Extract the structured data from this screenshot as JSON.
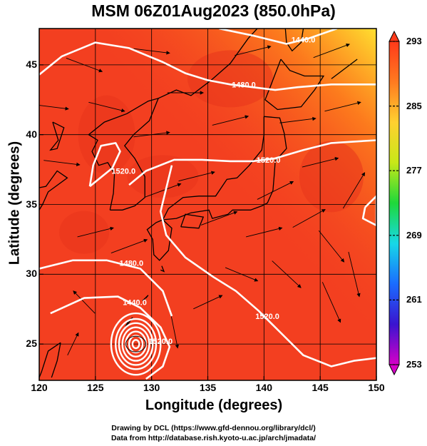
{
  "title": "MSM 06Z01Aug2023 (850.0hPa)",
  "xlabel": "Longitude (degrees)",
  "ylabel": "Latitude  (degrees)",
  "credit_lines": [
    "Drawing by DCL (https://www.gfd-dennou.org/library/dcl/)",
    "Data from http://database.rish.kyoto-u.ac.jp/arch/jmadata/"
  ],
  "chart_data": {
    "type": "heatmap",
    "title": "MSM 06Z01Aug2023 (850.0hPa)",
    "xlabel": "Longitude (degrees)",
    "ylabel": "Latitude  (degrees)",
    "xlim": [
      120,
      150
    ],
    "ylim": [
      22.4,
      47.6
    ],
    "x_ticks": [
      120,
      125,
      130,
      135,
      140,
      145,
      150
    ],
    "y_ticks": [
      25,
      30,
      35,
      40,
      45
    ],
    "grid": true,
    "colorbar": {
      "ticks": [
        293,
        285,
        277,
        269,
        261,
        253
      ],
      "min": 253,
      "max": 293,
      "colors": [
        "#d600c8",
        "#3a14d0",
        "#1a6cff",
        "#17d8e8",
        "#1ed83a",
        "#c8e818",
        "#ffd030",
        "#ff7a20",
        "#ff3a1a"
      ]
    },
    "field_color": "#f33f20",
    "contour_labels": [
      {
        "text": "1440.0",
        "lon": 143.5,
        "lat": 46.8
      },
      {
        "text": "1480.0",
        "lon": 138.2,
        "lat": 43.6
      },
      {
        "text": "1520.0",
        "lon": 140.4,
        "lat": 38.2
      },
      {
        "text": "1520.0",
        "lon": 127.5,
        "lat": 37.4
      },
      {
        "text": "1480.0",
        "lon": 128.2,
        "lat": 30.8
      },
      {
        "text": "1440.0",
        "lon": 128.5,
        "lat": 28.0
      },
      {
        "text": "1520.0",
        "lon": 140.3,
        "lat": 27.0
      },
      {
        "text": "1520.0",
        "lon": 130.8,
        "lat": 25.2
      }
    ],
    "contour_lines": [
      [
        [
          120,
          44.3
        ],
        [
          122,
          45.6
        ],
        [
          125,
          46.6
        ],
        [
          128,
          46.2
        ],
        [
          131,
          45.2
        ],
        [
          133,
          44.4
        ],
        [
          135,
          43.9
        ],
        [
          137,
          43.6
        ],
        [
          139,
          43.4
        ],
        [
          141,
          43.2
        ],
        [
          143,
          43.4
        ],
        [
          146,
          43.6
        ],
        [
          150,
          43.6
        ]
      ],
      [
        [
          136,
          47.6
        ],
        [
          139,
          47.1
        ],
        [
          142,
          46.5
        ],
        [
          144,
          46.9
        ],
        [
          146.5,
          47.6
        ]
      ],
      [
        [
          124.5,
          36.3
        ],
        [
          126.5,
          37.6
        ],
        [
          127.2,
          38.8
        ],
        [
          126.8,
          39.4
        ],
        [
          125.5,
          39.2
        ],
        [
          124.8,
          37.8
        ],
        [
          124.5,
          36.3
        ]
      ],
      [
        [
          128,
          36.4
        ],
        [
          129.5,
          37.4
        ],
        [
          132,
          38.2
        ],
        [
          134.5,
          38.2
        ],
        [
          137,
          38.1
        ],
        [
          139,
          38.1
        ],
        [
          141,
          38.3
        ],
        [
          143.5,
          38.9
        ],
        [
          146,
          39.4
        ],
        [
          150,
          39.6
        ]
      ],
      [
        [
          131.8,
          37.8
        ],
        [
          130.8,
          34.5
        ],
        [
          131.3,
          32.8
        ],
        [
          133,
          31.2
        ],
        [
          135.5,
          29.8
        ],
        [
          137.5,
          28.8
        ],
        [
          139.5,
          27.4
        ],
        [
          141.5,
          25.8
        ],
        [
          143.5,
          24.2
        ],
        [
          146,
          23.4
        ],
        [
          148,
          23.8
        ],
        [
          150,
          24.0
        ]
      ],
      [
        [
          120,
          30.4
        ],
        [
          123,
          31.0
        ],
        [
          126,
          31.0
        ],
        [
          129,
          30.4
        ],
        [
          131,
          28.8
        ],
        [
          131.8,
          27
        ]
      ],
      [
        [
          121,
          27.2
        ],
        [
          124,
          28.3
        ],
        [
          127,
          28.4
        ],
        [
          129,
          27.6
        ],
        [
          130.8,
          26.2
        ],
        [
          131.6,
          24.8
        ],
        [
          131,
          23.4
        ],
        [
          129.5,
          22.5
        ]
      ],
      [
        [
          149,
          34.8
        ],
        [
          150,
          35.6
        ],
        [
          150,
          33.5
        ],
        [
          148.8,
          34.0
        ],
        [
          149,
          34.8
        ]
      ]
    ],
    "vortex_center": {
      "lon": 128.6,
      "lat": 25.0
    },
    "vortex_rings": [
      0.3,
      0.6,
      0.9,
      1.2,
      1.5,
      1.8,
      2.2
    ],
    "coastlines": [
      [
        [
          141.5,
          45.4
        ],
        [
          142.3,
          44.6
        ],
        [
          143.6,
          44.2
        ],
        [
          145.3,
          44.2
        ],
        [
          144.5,
          43.2
        ],
        [
          143.3,
          42.0
        ],
        [
          141.2,
          41.8
        ],
        [
          140.1,
          42.5
        ],
        [
          140.5,
          43.3
        ],
        [
          141.5,
          45.4
        ]
      ],
      [
        [
          140.0,
          41.3
        ],
        [
          141.4,
          41.2
        ],
        [
          141.8,
          40.1
        ],
        [
          142.0,
          39.0
        ],
        [
          141.0,
          38.1
        ],
        [
          140.9,
          37.0
        ],
        [
          140.8,
          36.0
        ],
        [
          140.3,
          35.1
        ],
        [
          139.8,
          34.9
        ],
        [
          138.8,
          34.6
        ],
        [
          137.2,
          34.6
        ],
        [
          136.8,
          34.3
        ],
        [
          135.4,
          34.0
        ],
        [
          135.1,
          34.6
        ],
        [
          133.5,
          34.4
        ],
        [
          132.2,
          34.0
        ],
        [
          131.0,
          33.9
        ],
        [
          131.5,
          34.7
        ],
        [
          132.8,
          35.5
        ],
        [
          134.2,
          35.6
        ],
        [
          135.7,
          35.6
        ],
        [
          136.7,
          36.8
        ],
        [
          137.6,
          36.9
        ],
        [
          138.7,
          37.8
        ],
        [
          139.8,
          38.9
        ],
        [
          140.0,
          40.0
        ],
        [
          140.0,
          41.3
        ]
      ],
      [
        [
          131.0,
          33.9
        ],
        [
          131.8,
          33.3
        ],
        [
          131.5,
          31.7
        ],
        [
          130.7,
          31.0
        ],
        [
          130.2,
          31.4
        ],
        [
          130.1,
          32.5
        ],
        [
          129.6,
          33.2
        ],
        [
          130.4,
          33.7
        ],
        [
          131.0,
          33.9
        ]
      ],
      [
        [
          132.6,
          33.4
        ],
        [
          134.2,
          33.3
        ],
        [
          134.6,
          34.1
        ],
        [
          133.0,
          34.3
        ],
        [
          132.6,
          33.4
        ]
      ],
      [
        [
          126.3,
          34.6
        ],
        [
          126.6,
          35.8
        ],
        [
          126.7,
          37.2
        ],
        [
          126.1,
          38.0
        ],
        [
          125.3,
          37.8
        ],
        [
          124.7,
          38.8
        ],
        [
          125.2,
          39.6
        ],
        [
          124.4,
          40.0
        ],
        [
          125.8,
          40.9
        ],
        [
          127.8,
          41.5
        ],
        [
          129.7,
          42.4
        ],
        [
          130.6,
          42.6
        ],
        [
          129.8,
          41.0
        ],
        [
          128.4,
          40.0
        ],
        [
          127.6,
          39.2
        ],
        [
          128.5,
          38.3
        ],
        [
          129.4,
          37.0
        ],
        [
          129.4,
          35.5
        ],
        [
          128.5,
          34.9
        ],
        [
          127.4,
          34.6
        ],
        [
          126.3,
          34.6
        ]
      ],
      [
        [
          121.2,
          40.9
        ],
        [
          122.2,
          40.5
        ],
        [
          121.6,
          39.0
        ],
        [
          121.0,
          38.9
        ],
        [
          121.7,
          39.6
        ],
        [
          121.2,
          40.9
        ]
      ],
      [
        [
          120,
          36.2
        ],
        [
          120.6,
          36.3
        ],
        [
          121.6,
          37.4
        ],
        [
          122.5,
          36.9
        ],
        [
          120.8,
          35.9
        ],
        [
          120.3,
          35.0
        ],
        [
          120,
          34.6
        ]
      ],
      [
        [
          130.6,
          42.6
        ],
        [
          132.2,
          43.2
        ],
        [
          133.5,
          42.8
        ],
        [
          135.3,
          43.9
        ],
        [
          137.0,
          45.1
        ],
        [
          138.6,
          46.9
        ],
        [
          139.4,
          47.6
        ]
      ],
      [
        [
          141.9,
          47.6
        ],
        [
          142.0,
          46.6
        ],
        [
          142.5,
          46.0
        ],
        [
          143.3,
          46.6
        ],
        [
          143.5,
          47.6
        ]
      ],
      [
        [
          146.0,
          44.0
        ],
        [
          148.3,
          45.4
        ]
      ],
      [
        [
          121.9,
          25.1
        ],
        [
          120.8,
          24.5
        ],
        [
          120.2,
          23.0
        ],
        [
          120.0,
          22.6
        ]
      ],
      [
        [
          121.9,
          25.1
        ],
        [
          121.6,
          23.8
        ],
        [
          121.1,
          22.6
        ]
      ],
      [
        [
          127.6,
          26.1
        ],
        [
          128.3,
          26.9
        ],
        [
          127.9,
          26.6
        ],
        [
          127.6,
          26.1
        ]
      ],
      [
        [
          129.2,
          28.1
        ],
        [
          129.7,
          28.5
        ],
        [
          129.5,
          28.3
        ]
      ],
      [
        [
          130.9,
          30.6
        ],
        [
          131.1,
          30.2
        ],
        [
          130.8,
          30.3
        ]
      ]
    ],
    "wind_vectors": [
      [
        123.0,
        25.0,
        0.3,
        0.5
      ],
      [
        124.0,
        28.0,
        -0.6,
        0.5
      ],
      [
        132.0,
        26.0,
        0.2,
        -0.8
      ],
      [
        135.0,
        28.0,
        0.8,
        0.3
      ],
      [
        138.0,
        30.0,
        0.9,
        -0.3
      ],
      [
        142.0,
        30.0,
        0.8,
        -0.6
      ],
      [
        146.0,
        28.0,
        0.5,
        -0.9
      ],
      [
        148.0,
        30.0,
        0.3,
        -1.0
      ],
      [
        140.0,
        33.0,
        1.0,
        0.2
      ],
      [
        144.0,
        34.0,
        0.9,
        0.4
      ],
      [
        148.0,
        36.0,
        0.6,
        0.8
      ],
      [
        125.0,
        33.0,
        1.0,
        0.2
      ],
      [
        128.0,
        32.0,
        1.0,
        0.3
      ],
      [
        131.0,
        36.0,
        1.0,
        0.3
      ],
      [
        134.0,
        37.0,
        1.0,
        0.2
      ],
      [
        122.0,
        38.0,
        1.0,
        -0.1
      ],
      [
        126.0,
        42.0,
        1.0,
        -0.2
      ],
      [
        130.0,
        40.0,
        1.0,
        0.1
      ],
      [
        137.0,
        41.0,
        1.0,
        0.2
      ],
      [
        143.0,
        41.0,
        1.0,
        0.1
      ],
      [
        147.0,
        42.0,
        1.0,
        0.2
      ],
      [
        124.0,
        45.0,
        1.0,
        -0.3
      ],
      [
        130.0,
        46.0,
        1.0,
        -0.1
      ],
      [
        139.0,
        46.0,
        1.0,
        0.2
      ],
      [
        146.0,
        46.0,
        1.0,
        0.3
      ],
      [
        136.0,
        34.0,
        1.0,
        0.3
      ],
      [
        145.0,
        38.0,
        1.0,
        0.2
      ],
      [
        121.0,
        42.0,
        1.0,
        -0.1
      ],
      [
        133.0,
        43.0,
        1.0,
        0.0
      ],
      [
        141.0,
        36.0,
        1.0,
        0.4
      ],
      [
        146.0,
        32.0,
        0.7,
        -0.7
      ]
    ]
  }
}
